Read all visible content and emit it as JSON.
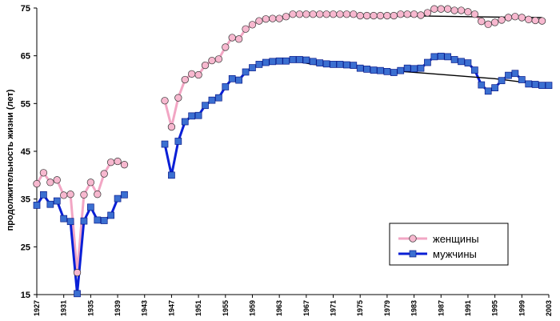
{
  "chart_data": {
    "type": "line",
    "ylabel": "продолжительность жизни (лет)",
    "ylim": [
      15,
      75
    ],
    "yticks": [
      15,
      25,
      35,
      45,
      55,
      65,
      75
    ],
    "xlim": [
      1927,
      2003
    ],
    "xticks": [
      1927,
      1931,
      1935,
      1939,
      1943,
      1947,
      1951,
      1955,
      1959,
      1963,
      1967,
      1971,
      1975,
      1979,
      1983,
      1987,
      1991,
      1995,
      1999,
      2003
    ],
    "grid": false,
    "legend_position": "bottom-right",
    "series": [
      {
        "name": "женщины",
        "color": "#f2a6c4",
        "marker": "circle",
        "marker_fill": "#f7b8cf",
        "segments": [
          [
            [
              1927,
              38.2
            ],
            [
              1928,
              40.5
            ],
            [
              1929,
              38.5
            ],
            [
              1930,
              39.0
            ],
            [
              1931,
              35.8
            ],
            [
              1932,
              36.0
            ],
            [
              1933,
              19.6
            ],
            [
              1934,
              35.9
            ],
            [
              1935,
              38.5
            ],
            [
              1936,
              36.0
            ],
            [
              1937,
              40.3
            ],
            [
              1938,
              42.7
            ],
            [
              1939,
              42.9
            ],
            [
              1940,
              42.2
            ]
          ],
          [
            [
              1946,
              55.6
            ],
            [
              1947,
              50.1
            ],
            [
              1948,
              56.2
            ],
            [
              1949,
              60.0
            ],
            [
              1950,
              61.2
            ],
            [
              1951,
              61.0
            ],
            [
              1952,
              63.0
            ],
            [
              1953,
              64.0
            ],
            [
              1954,
              64.3
            ],
            [
              1955,
              66.8
            ],
            [
              1956,
              68.8
            ],
            [
              1957,
              68.5
            ],
            [
              1958,
              70.6
            ],
            [
              1959,
              71.5
            ],
            [
              1960,
              72.3
            ],
            [
              1961,
              72.7
            ],
            [
              1962,
              72.8
            ],
            [
              1963,
              72.8
            ],
            [
              1964,
              73.2
            ],
            [
              1965,
              73.7
            ],
            [
              1966,
              73.7
            ],
            [
              1967,
              73.7
            ],
            [
              1968,
              73.7
            ],
            [
              1969,
              73.7
            ],
            [
              1970,
              73.7
            ],
            [
              1971,
              73.7
            ],
            [
              1972,
              73.7
            ],
            [
              1973,
              73.7
            ],
            [
              1974,
              73.7
            ],
            [
              1975,
              73.4
            ],
            [
              1976,
              73.4
            ],
            [
              1977,
              73.4
            ],
            [
              1978,
              73.4
            ],
            [
              1979,
              73.4
            ],
            [
              1980,
              73.4
            ],
            [
              1981,
              73.7
            ],
            [
              1982,
              73.7
            ],
            [
              1983,
              73.7
            ],
            [
              1984,
              73.5
            ],
            [
              1985,
              74.0
            ],
            [
              1986,
              74.8
            ],
            [
              1987,
              74.8
            ],
            [
              1988,
              74.8
            ],
            [
              1989,
              74.5
            ],
            [
              1990,
              74.5
            ],
            [
              1991,
              74.2
            ],
            [
              1992,
              73.7
            ],
            [
              1993,
              72.2
            ],
            [
              1994,
              71.6
            ],
            [
              1995,
              72.0
            ],
            [
              1996,
              72.5
            ],
            [
              1997,
              73.0
            ],
            [
              1998,
              73.2
            ],
            [
              1999,
              73.0
            ],
            [
              2000,
              72.6
            ],
            [
              2001,
              72.4
            ],
            [
              2002,
              72.3
            ]
          ]
        ]
      },
      {
        "name": "мужчины",
        "color": "#0a1fd6",
        "marker": "square",
        "marker_fill": "#3b6fd1",
        "segments": [
          [
            [
              1927,
              33.7
            ],
            [
              1928,
              35.9
            ],
            [
              1929,
              33.9
            ],
            [
              1930,
              34.6
            ],
            [
              1931,
              30.9
            ],
            [
              1932,
              30.3
            ],
            [
              1933,
              15.2
            ],
            [
              1934,
              30.4
            ],
            [
              1935,
              33.3
            ],
            [
              1936,
              30.6
            ],
            [
              1937,
              30.5
            ],
            [
              1938,
              31.6
            ],
            [
              1939,
              35.1
            ],
            [
              1940,
              35.9
            ]
          ],
          [
            [
              1946,
              46.5
            ],
            [
              1947,
              40.0
            ],
            [
              1948,
              47.1
            ],
            [
              1949,
              51.2
            ],
            [
              1950,
              52.4
            ],
            [
              1951,
              52.5
            ],
            [
              1952,
              54.6
            ],
            [
              1953,
              55.7
            ],
            [
              1954,
              56.2
            ],
            [
              1955,
              58.5
            ],
            [
              1956,
              60.2
            ],
            [
              1957,
              59.9
            ],
            [
              1958,
              61.6
            ],
            [
              1959,
              62.5
            ],
            [
              1960,
              63.2
            ],
            [
              1961,
              63.6
            ],
            [
              1962,
              63.8
            ],
            [
              1963,
              63.9
            ],
            [
              1964,
              63.9
            ],
            [
              1965,
              64.2
            ],
            [
              1966,
              64.2
            ],
            [
              1967,
              64.1
            ],
            [
              1968,
              63.8
            ],
            [
              1969,
              63.5
            ],
            [
              1970,
              63.3
            ],
            [
              1971,
              63.2
            ],
            [
              1972,
              63.2
            ],
            [
              1973,
              63.1
            ],
            [
              1974,
              63.0
            ],
            [
              1975,
              62.4
            ],
            [
              1976,
              62.2
            ],
            [
              1977,
              62.0
            ],
            [
              1978,
              61.9
            ],
            [
              1979,
              61.7
            ],
            [
              1980,
              61.5
            ],
            [
              1981,
              61.9
            ],
            [
              1982,
              62.4
            ],
            [
              1983,
              62.3
            ],
            [
              1984,
              62.4
            ],
            [
              1985,
              63.6
            ],
            [
              1986,
              64.8
            ],
            [
              1987,
              64.9
            ],
            [
              1988,
              64.8
            ],
            [
              1989,
              64.2
            ],
            [
              1990,
              63.8
            ],
            [
              1991,
              63.5
            ],
            [
              1992,
              62.0
            ],
            [
              1993,
              58.9
            ],
            [
              1994,
              57.6
            ],
            [
              1995,
              58.3
            ],
            [
              1996,
              59.8
            ],
            [
              1997,
              60.9
            ],
            [
              1998,
              61.3
            ],
            [
              1999,
              60.0
            ],
            [
              2000,
              59.1
            ],
            [
              2001,
              59.0
            ],
            [
              2002,
              58.8
            ],
            [
              2003,
              58.8
            ]
          ]
        ]
      }
    ],
    "trendlines": [
      {
        "of": "женщины",
        "color": "#000000",
        "points": [
          [
            1965,
            73.5
          ],
          [
            1975,
            73.4
          ],
          [
            1985,
            73.3
          ],
          [
            1995,
            73.1
          ],
          [
            2002,
            73.0
          ]
        ]
      },
      {
        "of": "мужчины",
        "color": "#000000",
        "points": [
          [
            1963,
            64.4
          ],
          [
            1968,
            63.2
          ],
          [
            1975,
            62.4
          ],
          [
            1985,
            61.3
          ],
          [
            1995,
            60.2
          ],
          [
            2003,
            58.8
          ]
        ]
      }
    ]
  }
}
